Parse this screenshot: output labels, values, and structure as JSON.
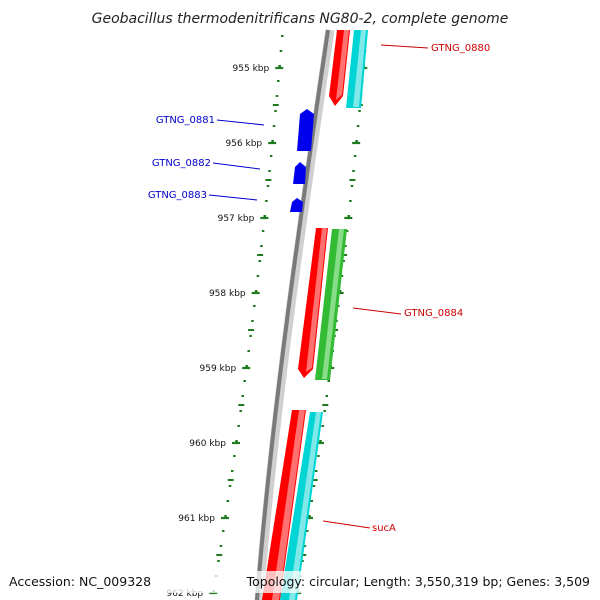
{
  "title": "Geobacillus thermodenitrificans NG80-2, complete genome",
  "footer": {
    "accession": "Accession: NC_009328",
    "topology": "Topology: circular; Length: 3,550,319 bp; Genes: 3,509"
  },
  "colors": {
    "forward_label": "#cc0000",
    "reverse_label": "#0000cc",
    "backbone": "#808080",
    "tick": "#1f7a1f",
    "cds_red": "#ff0000",
    "cds_cyan": "#00d4d4",
    "cds_green": "#33bb33",
    "cds_blue": "#0000ee"
  },
  "scale": {
    "unit": "kbp",
    "ticks": [
      {
        "label": "955 kbp"
      },
      {
        "label": "956 kbp"
      },
      {
        "label": "957 kbp"
      },
      {
        "label": "958 kbp"
      },
      {
        "label": "959 kbp"
      },
      {
        "label": "960 kbp"
      },
      {
        "label": "961 kbp"
      },
      {
        "label": "962 kbp"
      }
    ]
  },
  "genes": [
    {
      "name": "GTNG_0880",
      "strand": "+"
    },
    {
      "name": "GTNG_0881",
      "strand": "-"
    },
    {
      "name": "GTNG_0882",
      "strand": "-"
    },
    {
      "name": "GTNG_0883",
      "strand": "-"
    },
    {
      "name": "GTNG_0884",
      "strand": "+"
    },
    {
      "name": "sucA",
      "strand": "+"
    }
  ]
}
